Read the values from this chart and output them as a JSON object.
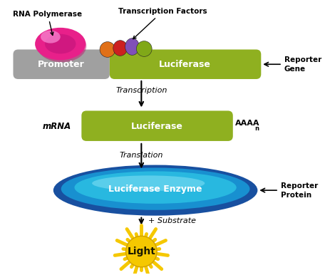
{
  "promoter_color": "#a0a0a0",
  "luciferase_color": "#8fb020",
  "promoter_label": "Promoter",
  "luciferase_label": "Luciferase",
  "luciferase_enzyme_label": "Luciferase Enzyme",
  "rna_polymerase_label": "RNA Polymerase",
  "transcription_factors_label": "Transcription Factors",
  "reporter_gene_label_1": "Reporter",
  "reporter_gene_label_2": "Gene",
  "reporter_protein_label_1": "Reporter",
  "reporter_protein_label_2": "Protein",
  "mrna_label": "mRNA",
  "aaaa_label": "AAAA",
  "aaaa_sub": "n",
  "transcription_label": "Transcription",
  "translation_label": "Translation",
  "substrate_label": "+ Substrate",
  "light_label": "Light",
  "rna_poly_color": "#e8208a",
  "rna_poly_highlight": "#f580cc",
  "tf_colors": [
    "#e07018",
    "#cc2020",
    "#8050b8",
    "#80a818"
  ],
  "enzyme_outer_color": "#1850a0",
  "enzyme_mid_color": "#1890d0",
  "enzyme_inner_color": "#28b8e0",
  "enzyme_top_color": "#70d8f0",
  "star_color": "#f5c800",
  "star_outline": "#d0a000",
  "light_text_color": "#1a1a00"
}
